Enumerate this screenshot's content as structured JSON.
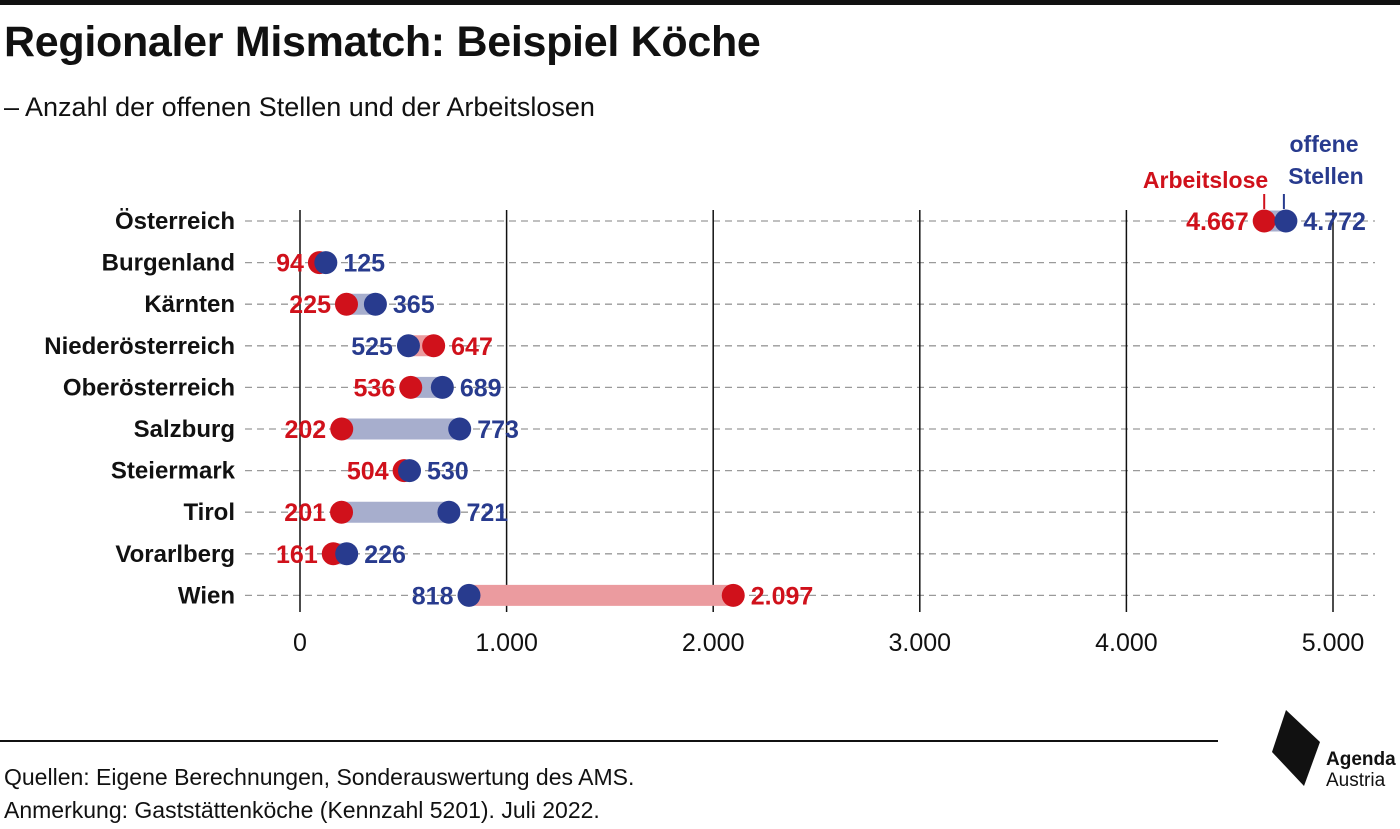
{
  "title": "Regionaler Mismatch: Beispiel Köche",
  "subtitle": "– Anzahl der offenen Stellen und der Arbeitslosen",
  "footer": {
    "source": "Quellen: Eigene Berechnungen, Sonderauswertung des AMS.",
    "note": "Anmerkung: Gaststättenköche (Kennzahl 5201). Juli 2022."
  },
  "logo": {
    "line1": "Agenda",
    "line2": "Austria"
  },
  "colors": {
    "arbeitslose": "#d0111b",
    "offene_stellen": "#283b8e",
    "bar_more_offene": "#a7aecd",
    "bar_more_arbeitslose": "#eb9b9f",
    "grid": "#9a9a9a",
    "axis": "#111111"
  },
  "chart_data": {
    "type": "dumbbell",
    "categories": [
      "Österreich",
      "Burgenland",
      "Kärnten",
      "Niederösterreich",
      "Oberösterreich",
      "Salzburg",
      "Steiermark",
      "Tirol",
      "Vorarlberg",
      "Wien"
    ],
    "series": [
      {
        "name": "Arbeitslose",
        "values": [
          4667,
          94,
          225,
          647,
          536,
          202,
          504,
          201,
          161,
          2097
        ]
      },
      {
        "name": "offene Stellen",
        "values": [
          4772,
          125,
          365,
          525,
          689,
          773,
          530,
          721,
          226,
          818
        ]
      }
    ],
    "value_labels": {
      "Arbeitslose": [
        "4.667",
        "94",
        "225",
        "647",
        "536",
        "202",
        "504",
        "201",
        "161",
        "2.097"
      ],
      "offene Stellen": [
        "4.772",
        "125",
        "365",
        "525",
        "689",
        "773",
        "530",
        "721",
        "226",
        "818"
      ]
    },
    "legend": {
      "arbeitslose": "Arbeitslose",
      "offene_stellen_line1": "offene",
      "offene_stellen_line2": "Stellen",
      "placement": "top-right"
    },
    "bold_category": "Österreich",
    "xlim": [
      0,
      5000
    ],
    "xticks": [
      0,
      1000,
      2000,
      3000,
      4000,
      5000
    ],
    "xtick_labels": [
      "0",
      "1.000",
      "2.000",
      "3.000",
      "4.000",
      "5.000"
    ],
    "grid": {
      "vertical_solid": true,
      "horizontal_dashed": true
    }
  }
}
